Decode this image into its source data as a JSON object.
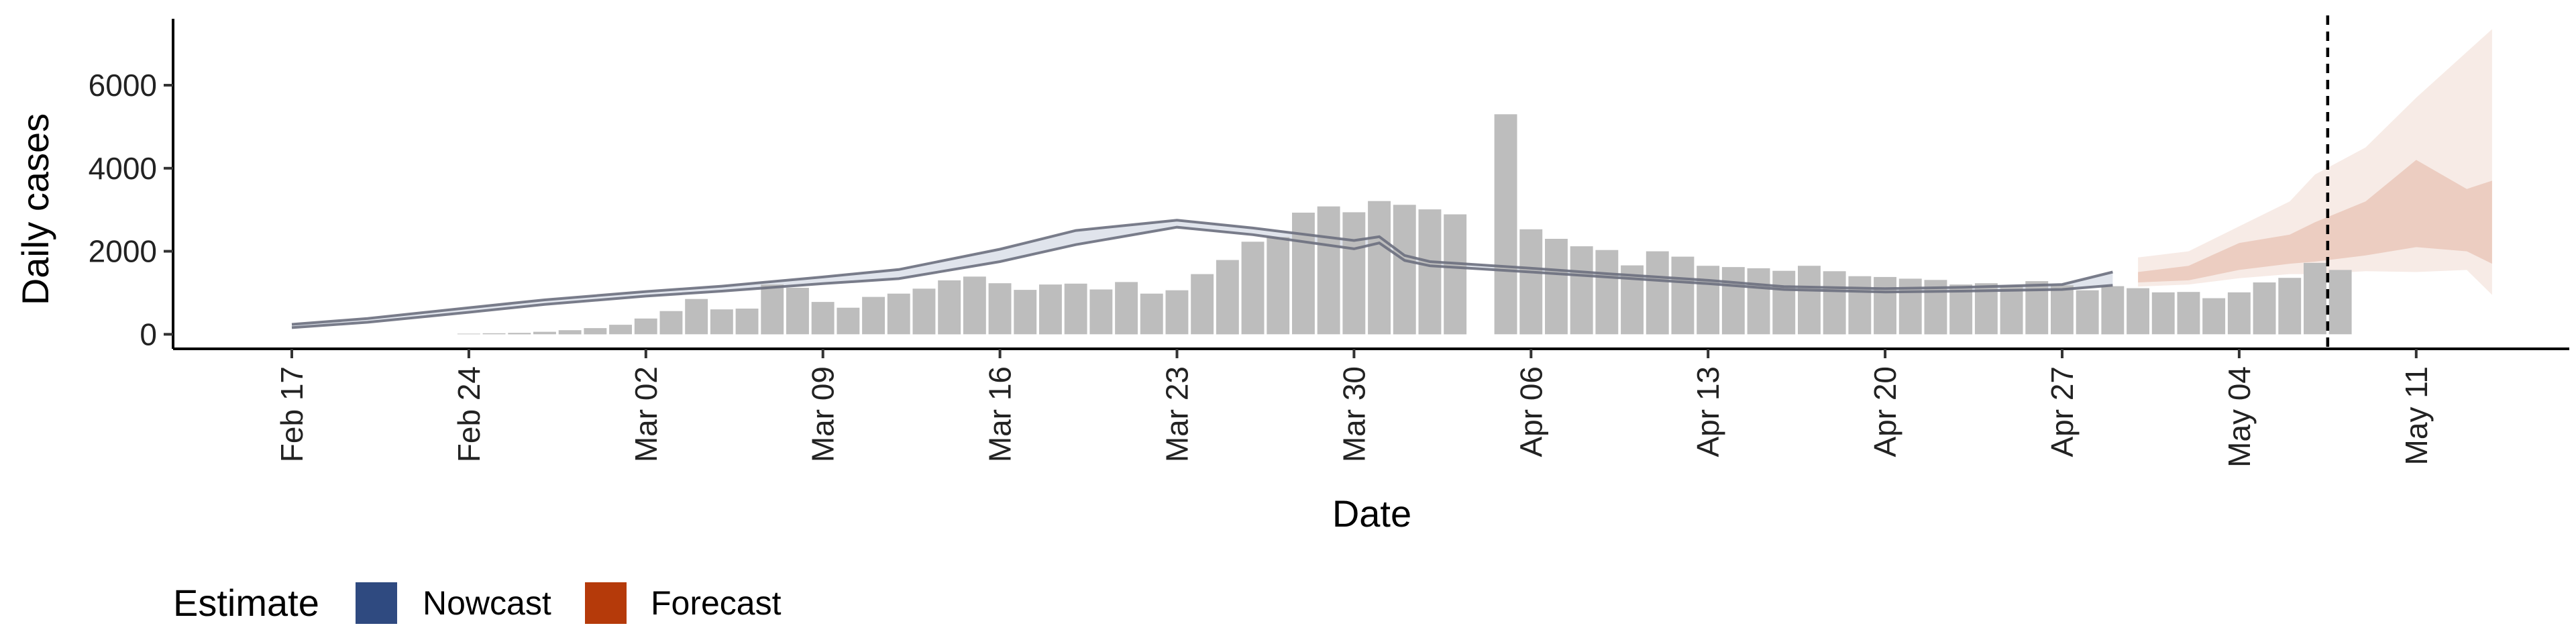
{
  "chart_data": {
    "type": "bar",
    "xlabel": "Date",
    "ylabel": "Daily cases",
    "ylim": [
      -350,
      7600
    ],
    "yticks": [
      0,
      2000,
      4000,
      6000
    ],
    "xticks": [
      "Feb 17",
      "Feb 24",
      "Mar 02",
      "Mar 09",
      "Mar 16",
      "Mar 23",
      "Mar 30",
      "Apr 06",
      "Apr 13",
      "Apr 20",
      "Apr 27",
      "May 04",
      "May 11"
    ],
    "xtick_days": [
      0,
      7,
      14,
      21,
      28,
      35,
      42,
      49,
      56,
      63,
      70,
      77,
      84
    ],
    "date_range": [
      "Feb 12",
      "May 17"
    ],
    "grid": false,
    "vline_day": 80.5,
    "bars": [
      {
        "date": "Feb 24",
        "value": 15
      },
      {
        "date": "Feb 25",
        "value": 25
      },
      {
        "date": "Feb 26",
        "value": 35
      },
      {
        "date": "Feb 27",
        "value": 60
      },
      {
        "date": "Feb 28",
        "value": 100
      },
      {
        "date": "Feb 29",
        "value": 150
      },
      {
        "date": "Mar 01",
        "value": 230
      },
      {
        "date": "Mar 02",
        "value": 380
      },
      {
        "date": "Mar 03",
        "value": 560
      },
      {
        "date": "Mar 04",
        "value": 850
      },
      {
        "date": "Mar 05",
        "value": 600
      },
      {
        "date": "Mar 06",
        "value": 620
      },
      {
        "date": "Mar 07",
        "value": 1200
      },
      {
        "date": "Mar 08",
        "value": 1120
      },
      {
        "date": "Mar 09",
        "value": 780
      },
      {
        "date": "Mar 10",
        "value": 640
      },
      {
        "date": "Mar 11",
        "value": 900
      },
      {
        "date": "Mar 12",
        "value": 980
      },
      {
        "date": "Mar 13",
        "value": 1100
      },
      {
        "date": "Mar 14",
        "value": 1300
      },
      {
        "date": "Mar 15",
        "value": 1390
      },
      {
        "date": "Mar 16",
        "value": 1230
      },
      {
        "date": "Mar 17",
        "value": 1070
      },
      {
        "date": "Mar 18",
        "value": 1200
      },
      {
        "date": "Mar 19",
        "value": 1220
      },
      {
        "date": "Mar 20",
        "value": 1080
      },
      {
        "date": "Mar 21",
        "value": 1260
      },
      {
        "date": "Mar 22",
        "value": 980
      },
      {
        "date": "Mar 23",
        "value": 1060
      },
      {
        "date": "Mar 24",
        "value": 1450
      },
      {
        "date": "Mar 25",
        "value": 1790
      },
      {
        "date": "Mar 26",
        "value": 2230
      },
      {
        "date": "Mar 27",
        "value": 2340
      },
      {
        "date": "Mar 28",
        "value": 2930
      },
      {
        "date": "Mar 29",
        "value": 3080
      },
      {
        "date": "Mar 30",
        "value": 2940
      },
      {
        "date": "Mar 31",
        "value": 3210
      },
      {
        "date": "Apr 01",
        "value": 3120
      },
      {
        "date": "Apr 02",
        "value": 3010
      },
      {
        "date": "Apr 03",
        "value": 2890
      },
      {
        "date": "Apr 05",
        "value": 5300
      },
      {
        "date": "Apr 06",
        "value": 2530
      },
      {
        "date": "Apr 07",
        "value": 2300
      },
      {
        "date": "Apr 08",
        "value": 2120
      },
      {
        "date": "Apr 09",
        "value": 2030
      },
      {
        "date": "Apr 10",
        "value": 1660
      },
      {
        "date": "Apr 11",
        "value": 2000
      },
      {
        "date": "Apr 12",
        "value": 1870
      },
      {
        "date": "Apr 13",
        "value": 1650
      },
      {
        "date": "Apr 14",
        "value": 1620
      },
      {
        "date": "Apr 15",
        "value": 1590
      },
      {
        "date": "Apr 16",
        "value": 1530
      },
      {
        "date": "Apr 17",
        "value": 1650
      },
      {
        "date": "Apr 18",
        "value": 1520
      },
      {
        "date": "Apr 19",
        "value": 1400
      },
      {
        "date": "Apr 20",
        "value": 1380
      },
      {
        "date": "Apr 21",
        "value": 1340
      },
      {
        "date": "Apr 22",
        "value": 1310
      },
      {
        "date": "Apr 23",
        "value": 1200
      },
      {
        "date": "Apr 24",
        "value": 1230
      },
      {
        "date": "Apr 25",
        "value": 1170
      },
      {
        "date": "Apr 26",
        "value": 1280
      },
      {
        "date": "Apr 27",
        "value": 1180
      },
      {
        "date": "Apr 28",
        "value": 1060
      },
      {
        "date": "Apr 29",
        "value": 1160
      },
      {
        "date": "Apr 30",
        "value": 1110
      },
      {
        "date": "May 01",
        "value": 1010
      },
      {
        "date": "May 02",
        "value": 1020
      },
      {
        "date": "May 03",
        "value": 870
      },
      {
        "date": "May 04",
        "value": 1010
      },
      {
        "date": "May 05",
        "value": 1250
      },
      {
        "date": "May 06",
        "value": 1360
      },
      {
        "date": "May 07",
        "value": 1720
      },
      {
        "date": "May 08",
        "value": 1550
      }
    ],
    "series": [
      {
        "name": "Nowcast",
        "color": "#2f4a80",
        "curve_color": "#6b6f7e",
        "days": [
          0,
          3,
          7,
          10,
          14,
          17,
          21,
          24,
          28,
          31,
          35,
          38,
          42,
          43,
          44,
          45,
          49,
          52,
          56,
          59,
          63,
          66,
          70,
          72
        ],
        "upper": [
          240,
          380,
          640,
          830,
          1030,
          1160,
          1380,
          1560,
          2050,
          2500,
          2750,
          2560,
          2260,
          2350,
          1900,
          1750,
          1590,
          1460,
          1300,
          1150,
          1100,
          1130,
          1200,
          1500
        ],
        "lower": [
          160,
          290,
          530,
          720,
          920,
          1040,
          1220,
          1340,
          1750,
          2160,
          2580,
          2400,
          2060,
          2200,
          1780,
          1650,
          1500,
          1380,
          1220,
          1080,
          1020,
          1040,
          1080,
          1180
        ]
      },
      {
        "name": "Forecast",
        "color": "#b53a0a",
        "days": [
          73,
          75,
          77,
          79,
          80,
          82,
          84,
          86,
          87
        ],
        "outer_upper": [
          1850,
          2000,
          2600,
          3200,
          3850,
          4500,
          5700,
          6800,
          7350
        ],
        "outer_lower": [
          1150,
          1200,
          1350,
          1450,
          1450,
          1520,
          1500,
          1550,
          950
        ],
        "inner_upper": [
          1500,
          1650,
          2200,
          2400,
          2700,
          3200,
          4200,
          3500,
          3700
        ],
        "inner_lower": [
          1250,
          1300,
          1550,
          1700,
          1750,
          1900,
          2100,
          2000,
          1700
        ]
      }
    ]
  },
  "legend": {
    "title": "Estimate",
    "items": [
      "Nowcast",
      "Forecast"
    ]
  }
}
